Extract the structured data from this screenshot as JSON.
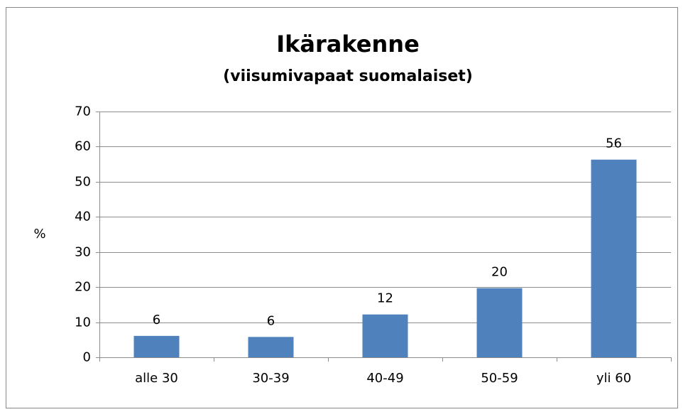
{
  "chart_data": {
    "type": "bar",
    "title": "Ikärakenne",
    "subtitle": "(viisumivapaat suomalaiset)",
    "y_label": "%",
    "categories": [
      "alle 30",
      "30-39",
      "40-49",
      "50-59",
      "yli 60"
    ],
    "values": [
      6.1,
      5.8,
      12.2,
      19.7,
      56.3
    ],
    "value_labels": [
      "6",
      "6",
      "12",
      "20",
      "56"
    ],
    "color": "#4f81bd",
    "ylim": [
      0,
      70
    ],
    "yticks": [
      0,
      10,
      20,
      30,
      40,
      50,
      60,
      70
    ],
    "grid": true
  }
}
